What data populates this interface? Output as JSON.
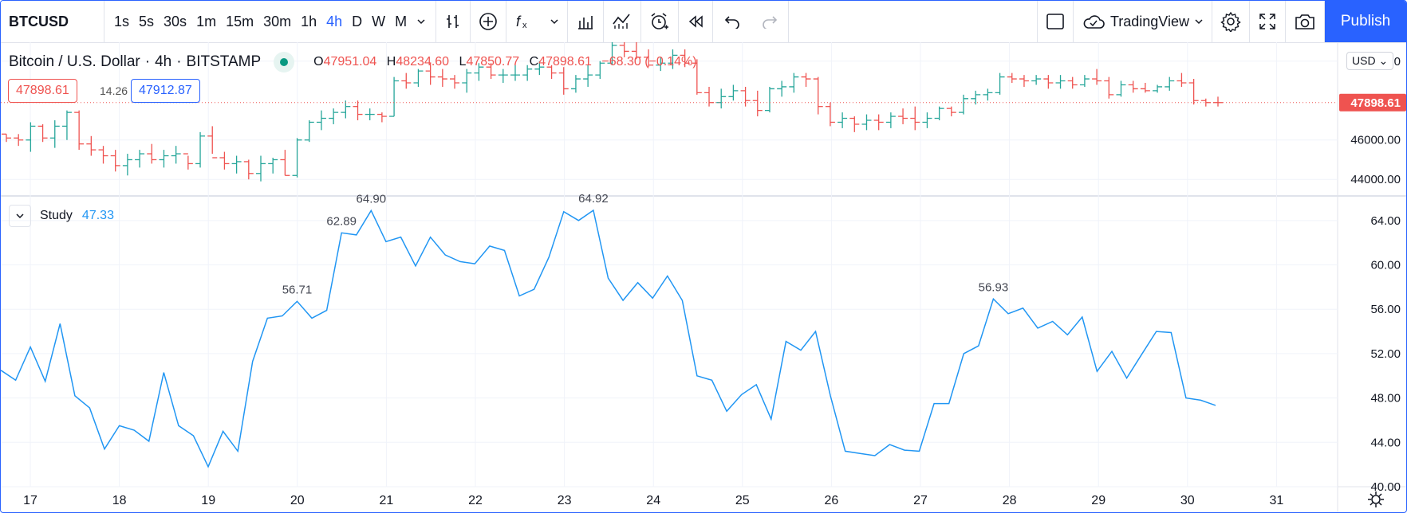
{
  "toolbar": {
    "symbol": "BTCUSD",
    "intervals": [
      "1s",
      "5s",
      "30s",
      "1m",
      "15m",
      "30m",
      "1h",
      "4h",
      "D",
      "W",
      "M"
    ],
    "active_interval": "4h",
    "brand": "TradingView",
    "publish_label": "Publish"
  },
  "legend": {
    "title": "Bitcoin / U.S. Dollar",
    "interval": "4h",
    "exchange": "BITSTAMP",
    "open_label": "O",
    "open": "47951.04",
    "high_label": "H",
    "high": "48234.60",
    "low_label": "L",
    "low": "47850.77",
    "close_label": "C",
    "close": "47898.61",
    "change": "−68.30 (−0.14%)",
    "bid": "47898.61",
    "spread": "14.26",
    "ask": "47912.87",
    "currency": "USD"
  },
  "study": {
    "name": "Study",
    "value": "47.33"
  },
  "colors": {
    "up": "#26a69a",
    "down": "#ef5350",
    "study_line": "#2196f3",
    "accent": "#2962ff"
  },
  "price_axis": {
    "labels": [
      "50000.00",
      "46000.00",
      "44000.00"
    ],
    "last_price": "47898.61"
  },
  "chart_data": [
    {
      "type": "bar",
      "title": "Bitcoin / U.S. Dollar",
      "ylim": [
        43200,
        50800
      ],
      "price_ticks": [
        50000,
        46000,
        44000
      ],
      "last": 47898.61,
      "bars": [
        [
          46300,
          46300,
          45900,
          46100
        ],
        [
          46100,
          46300,
          45700,
          46000
        ],
        [
          46000,
          46900,
          45400,
          46700
        ],
        [
          46700,
          46800,
          45900,
          46100
        ],
        [
          46100,
          47000,
          45600,
          46700
        ],
        [
          46700,
          47500,
          46000,
          47400
        ],
        [
          47400,
          47500,
          45500,
          45800
        ],
        [
          45800,
          46200,
          45200,
          45500
        ],
        [
          45500,
          45700,
          44800,
          45200
        ],
        [
          45200,
          45500,
          44400,
          44700
        ],
        [
          44700,
          45300,
          44200,
          45000
        ],
        [
          45000,
          45500,
          44600,
          45300
        ],
        [
          45300,
          45800,
          44800,
          45000
        ],
        [
          45000,
          45500,
          44600,
          45200
        ],
        [
          45200,
          45700,
          44800,
          45300
        ],
        [
          45300,
          45200,
          44500,
          44800
        ],
        [
          44800,
          46400,
          44600,
          46200
        ],
        [
          46200,
          46700,
          45300,
          45100
        ],
        [
          45100,
          45400,
          44500,
          44800
        ],
        [
          44800,
          45200,
          44300,
          44900
        ],
        [
          44900,
          45000,
          44000,
          44300
        ],
        [
          44300,
          45200,
          43900,
          44800
        ],
        [
          44800,
          45100,
          44300,
          45000
        ],
        [
          45000,
          45500,
          44200,
          44200
        ],
        [
          44200,
          46100,
          44100,
          46000
        ],
        [
          46000,
          47000,
          45900,
          46900
        ],
        [
          46900,
          47500,
          46500,
          47100
        ],
        [
          47100,
          47600,
          46800,
          47400
        ],
        [
          47400,
          48000,
          47100,
          47700
        ],
        [
          47700,
          48000,
          47000,
          47300
        ],
        [
          47300,
          47600,
          47000,
          47300
        ],
        [
          47300,
          47400,
          46900,
          47200
        ],
        [
          47200,
          49200,
          47200,
          49000
        ],
        [
          49000,
          49400,
          48600,
          48900
        ],
        [
          48900,
          49600,
          48700,
          49500
        ],
        [
          49500,
          49900,
          48800,
          49200
        ],
        [
          49200,
          49600,
          48700,
          49100
        ],
        [
          49100,
          49300,
          48600,
          48900
        ],
        [
          48900,
          49600,
          48400,
          49400
        ],
        [
          49400,
          49900,
          49000,
          49700
        ],
        [
          49700,
          49900,
          49100,
          49300
        ],
        [
          49300,
          49600,
          48900,
          49300
        ],
        [
          49300,
          49800,
          49000,
          49300
        ],
        [
          49300,
          49800,
          49000,
          49600
        ],
        [
          49600,
          50000,
          49300,
          49700
        ],
        [
          49700,
          49800,
          49100,
          49400
        ],
        [
          49400,
          49700,
          48300,
          48600
        ],
        [
          48600,
          49300,
          48400,
          49100
        ],
        [
          49100,
          49800,
          48700,
          49300
        ],
        [
          49300,
          50000,
          49100,
          49900
        ],
        [
          49900,
          51200,
          49800,
          50800
        ],
        [
          50800,
          51100,
          50200,
          50500
        ],
        [
          50500,
          51000,
          50100,
          50200
        ],
        [
          50200,
          50600,
          49700,
          49800
        ],
        [
          49800,
          50200,
          49500,
          49900
        ],
        [
          49900,
          50600,
          49600,
          50300
        ],
        [
          50300,
          50600,
          49700,
          49900
        ],
        [
          49900,
          50100,
          48300,
          48400
        ],
        [
          48400,
          48700,
          47700,
          47900
        ],
        [
          47900,
          48600,
          47600,
          48200
        ],
        [
          48200,
          48800,
          48000,
          48500
        ],
        [
          48500,
          48700,
          47700,
          48000
        ],
        [
          48000,
          48500,
          47200,
          47500
        ],
        [
          47500,
          48700,
          47400,
          48600
        ],
        [
          48600,
          49000,
          48200,
          48700
        ],
        [
          48700,
          49400,
          48400,
          49200
        ],
        [
          49200,
          49400,
          48700,
          49100
        ],
        [
          49100,
          49200,
          47300,
          47700
        ],
        [
          47700,
          47900,
          46700,
          46900
        ],
        [
          46900,
          47400,
          46600,
          47100
        ],
        [
          47100,
          47200,
          46400,
          46800
        ],
        [
          46800,
          47300,
          46500,
          47000
        ],
        [
          47000,
          47300,
          46500,
          46900
        ],
        [
          46900,
          47400,
          46600,
          47200
        ],
        [
          47200,
          47600,
          46800,
          47100
        ],
        [
          47100,
          47700,
          46500,
          46900
        ],
        [
          46900,
          47400,
          46600,
          47100
        ],
        [
          47100,
          47700,
          47000,
          47600
        ],
        [
          47600,
          47700,
          47200,
          47400
        ],
        [
          47400,
          48300,
          47300,
          48100
        ],
        [
          48100,
          48500,
          47800,
          48300
        ],
        [
          48300,
          48600,
          48000,
          48400
        ],
        [
          48400,
          49400,
          48300,
          49200
        ],
        [
          49200,
          49400,
          48900,
          49100
        ],
        [
          49100,
          49300,
          48700,
          49000
        ],
        [
          49000,
          49300,
          48800,
          49100
        ],
        [
          49100,
          49300,
          48600,
          48900
        ],
        [
          48900,
          49300,
          48600,
          49000
        ],
        [
          49000,
          49200,
          48600,
          48800
        ],
        [
          48800,
          49300,
          48700,
          49100
        ],
        [
          49100,
          49600,
          48800,
          49000
        ],
        [
          49000,
          49200,
          48100,
          48300
        ],
        [
          48300,
          49000,
          48200,
          48800
        ],
        [
          48800,
          49000,
          48400,
          48600
        ],
        [
          48600,
          48900,
          48400,
          48500
        ],
        [
          48500,
          48800,
          48400,
          48700
        ],
        [
          48700,
          49200,
          48500,
          49000
        ],
        [
          49000,
          49400,
          48700,
          48900
        ],
        [
          48900,
          49100,
          47800,
          48000
        ],
        [
          48000,
          48100,
          47700,
          47900
        ],
        [
          47900,
          48200,
          47700,
          47898.61
        ]
      ]
    },
    {
      "type": "line",
      "title": "Study",
      "ylim": [
        40,
        66
      ],
      "y_ticks": [
        64.0,
        60.0,
        56.0,
        52.0,
        48.0,
        44.0,
        40.0
      ],
      "x_labels": [
        "17",
        "18",
        "19",
        "20",
        "21",
        "22",
        "23",
        "24",
        "25",
        "26",
        "27",
        "28",
        "29",
        "30",
        "31"
      ],
      "values": [
        50.5,
        49.6,
        52.6,
        49.5,
        54.7,
        48.2,
        47.1,
        43.4,
        45.5,
        45.1,
        44.1,
        50.3,
        45.5,
        44.6,
        41.8,
        45.0,
        43.2,
        51.3,
        55.2,
        55.4,
        56.71,
        55.2,
        55.9,
        62.89,
        62.7,
        64.9,
        62.1,
        62.5,
        59.9,
        62.5,
        60.9,
        60.3,
        60.1,
        61.7,
        61.3,
        57.2,
        57.8,
        60.7,
        64.8,
        64.0,
        64.92,
        58.8,
        56.8,
        58.4,
        57.0,
        59.0,
        56.8,
        50.0,
        49.6,
        46.8,
        48.3,
        49.2,
        46.1,
        53.1,
        52.3,
        54.0,
        48.2,
        43.2,
        43.0,
        42.8,
        43.8,
        43.3,
        43.2,
        47.5,
        47.5,
        52.0,
        52.7,
        56.93,
        55.6,
        56.1,
        54.3,
        54.9,
        53.7,
        55.3,
        50.4,
        52.2,
        49.8,
        51.9,
        54.0,
        53.9,
        48.0,
        47.8,
        47.33
      ],
      "annotations": [
        {
          "index": 20,
          "label": "56.71"
        },
        {
          "index": 23,
          "label": "62.89"
        },
        {
          "index": 25,
          "label": "64.90"
        },
        {
          "index": 40,
          "label": "64.92"
        },
        {
          "index": 67,
          "label": "56.93"
        }
      ]
    }
  ]
}
